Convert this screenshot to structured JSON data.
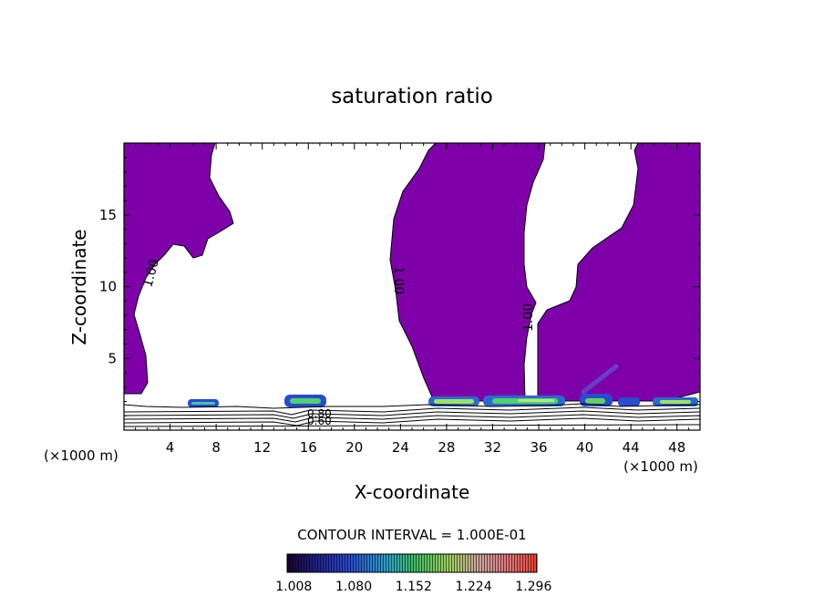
{
  "chart_data": {
    "type": "heatmap",
    "title": "saturation ratio",
    "xlabel": "X-coordinate",
    "ylabel": "Z-coordinate",
    "x_unit": "(×1000 m)",
    "z_unit": "(×1000 m)",
    "xlim": [
      0,
      50
    ],
    "ylim": [
      0,
      20
    ],
    "x_ticks": [
      4,
      8,
      12,
      16,
      20,
      24,
      28,
      32,
      36,
      40,
      44,
      48
    ],
    "y_ticks": [
      5,
      10,
      15
    ],
    "contour_interval_text": "CONTOUR INTERVAL = 1.000E-01",
    "contour_labels": [
      "1.00",
      "1.00",
      "1.00",
      "0.80",
      "0.60"
    ],
    "colorbar": {
      "ticks": [
        "1.008",
        "1.080",
        "1.152",
        "1.224",
        "1.296"
      ],
      "range": [
        1.0,
        1.3
      ]
    },
    "fill_color": "#7e00a8"
  }
}
